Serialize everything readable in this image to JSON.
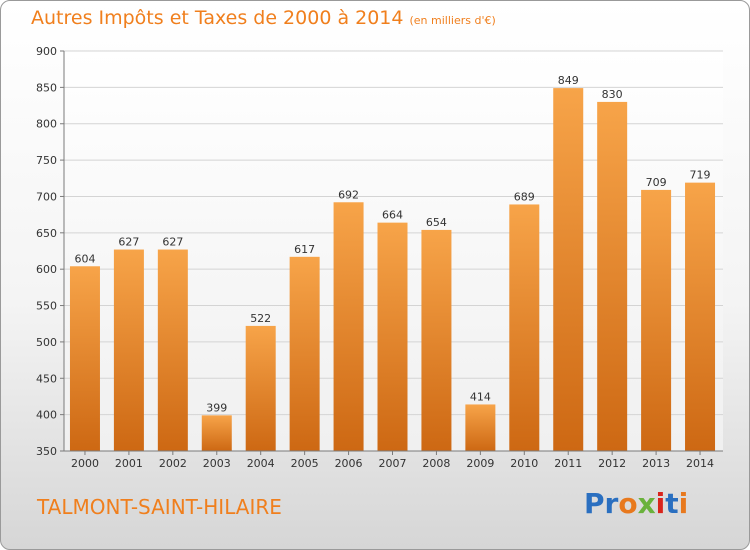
{
  "header": {
    "title": "Autres Impôts et Taxes de 2000 à 2014",
    "unit": "(en milliers d'€)"
  },
  "footer": {
    "place": "TALMONT-SAINT-HILAIRE",
    "logo_text": "Proxiti",
    "logo_colors": [
      "#2a6fc0",
      "#2a6fc0",
      "#e8791e",
      "#6ab23c",
      "#d9241c",
      "#2a6fc0",
      "#e8791e"
    ]
  },
  "colors": {
    "bar_top": "#f7a449",
    "bar_bottom": "#cd6813",
    "accent": "#f07f1d",
    "grid": "#d4d4d4"
  },
  "chart_data": {
    "type": "bar",
    "categories": [
      "2000",
      "2001",
      "2002",
      "2003",
      "2004",
      "2005",
      "2006",
      "2007",
      "2008",
      "2009",
      "2010",
      "2011",
      "2012",
      "2013",
      "2014"
    ],
    "values": [
      604,
      627,
      627,
      399,
      522,
      617,
      692,
      664,
      654,
      414,
      689,
      849,
      830,
      709,
      719
    ],
    "data_labels": [
      "604",
      "627",
      "627",
      "399",
      "522",
      "617",
      "692",
      "664",
      "654",
      "414",
      "689",
      "849",
      "830",
      "709",
      "719"
    ],
    "y_ticks": [
      350,
      400,
      450,
      500,
      550,
      600,
      650,
      700,
      750,
      800,
      850,
      900
    ],
    "ylim": [
      350,
      900
    ],
    "grid": true,
    "legend": "none"
  }
}
